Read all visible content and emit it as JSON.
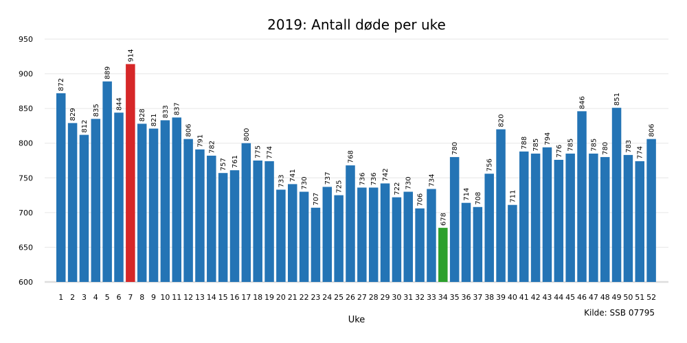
{
  "chart_data": {
    "type": "bar",
    "title": "2019: Antall døde per uke",
    "xlabel": "Uke",
    "ylabel": "",
    "source": "Kilde: SSB 07795",
    "ylim": [
      600,
      950
    ],
    "yticks": [
      600,
      650,
      700,
      750,
      800,
      850,
      900,
      950
    ],
    "grid": true,
    "categories": [
      "1",
      "2",
      "3",
      "4",
      "5",
      "6",
      "7",
      "8",
      "9",
      "10",
      "11",
      "12",
      "13",
      "14",
      "15",
      "16",
      "17",
      "18",
      "19",
      "20",
      "21",
      "22",
      "23",
      "24",
      "25",
      "26",
      "27",
      "28",
      "29",
      "30",
      "31",
      "32",
      "33",
      "34",
      "35",
      "36",
      "37",
      "38",
      "39",
      "40",
      "41",
      "42",
      "43",
      "44",
      "45",
      "46",
      "47",
      "48",
      "49",
      "50",
      "51",
      "52"
    ],
    "values": [
      872,
      829,
      812,
      835,
      889,
      844,
      914,
      828,
      821,
      833,
      837,
      806,
      791,
      782,
      757,
      761,
      800,
      775,
      774,
      733,
      741,
      730,
      707,
      737,
      725,
      768,
      736,
      736,
      742,
      722,
      730,
      706,
      734,
      678,
      780,
      714,
      708,
      756,
      820,
      711,
      788,
      785,
      794,
      776,
      785,
      846,
      785,
      780,
      851,
      783,
      774,
      806
    ],
    "colors": {
      "default": "#2474b5",
      "max": "#d62728",
      "min": "#2ca02c",
      "grid": "#e6e6e6",
      "baseline": "#dddddd"
    },
    "highlight": {
      "max_week": "7",
      "min_week": "34"
    }
  }
}
